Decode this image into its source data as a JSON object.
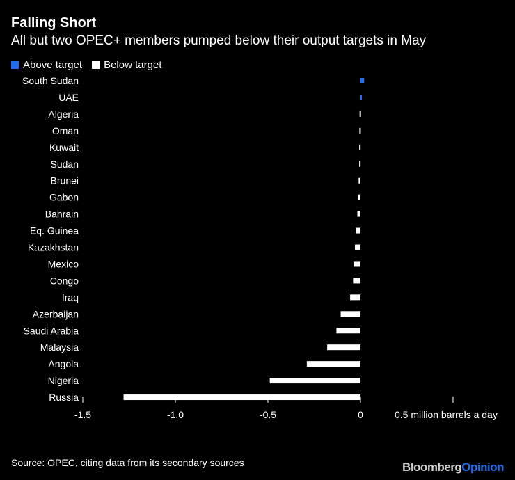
{
  "chart_data": {
    "type": "bar",
    "orientation": "horizontal",
    "title": "Falling Short",
    "subtitle": "All but two OPEC+ members pumped below their output targets in May",
    "categories": [
      "South Sudan",
      "UAE",
      "Algeria",
      "Oman",
      "Kuwait",
      "Sudan",
      "Brunei",
      "Gabon",
      "Bahrain",
      "Eq. Guinea",
      "Kazakhstan",
      "Mexico",
      "Congo",
      "Iraq",
      "Azerbaijan",
      "Saudi Arabia",
      "Malaysia",
      "Angola",
      "Nigeria",
      "Russia"
    ],
    "values": [
      0.02,
      0.006,
      -0.005,
      -0.006,
      -0.007,
      -0.007,
      -0.01,
      -0.013,
      -0.017,
      -0.025,
      -0.03,
      -0.036,
      -0.04,
      -0.056,
      -0.107,
      -0.13,
      -0.18,
      -0.29,
      -0.49,
      -1.28
    ],
    "legend": [
      {
        "label": "Above target",
        "color": "#1f6cf0"
      },
      {
        "label": "Below target",
        "color": "#ffffff"
      }
    ],
    "legend_placement": "top-left",
    "xlim": [
      -1.5,
      0.5
    ],
    "xticks": [
      -1.5,
      -1.0,
      -0.5,
      0,
      0.5
    ],
    "xtick_labels": [
      "-1.5",
      "-1.0",
      "-0.5",
      "0",
      "0.5 million barrels a day"
    ],
    "grid": false
  },
  "source": "Source: OPEC, citing data from its secondary sources",
  "logo": {
    "brand": "Bloomberg",
    "suffix": "Opinion"
  }
}
